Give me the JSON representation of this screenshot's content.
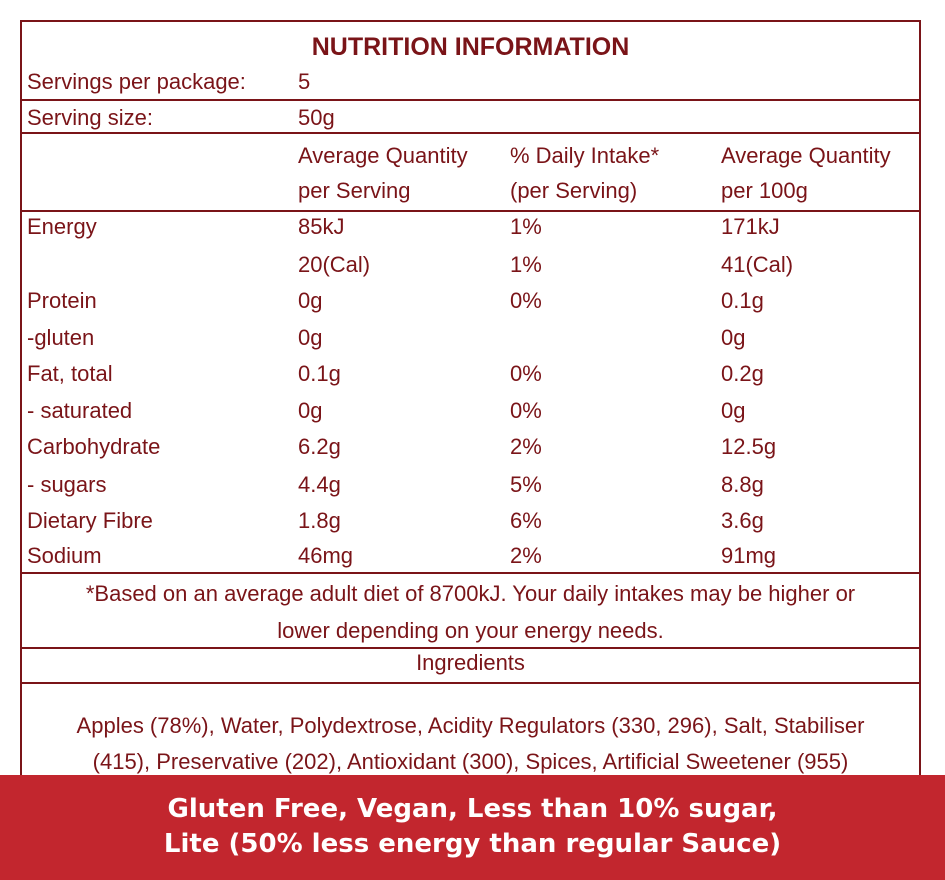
{
  "panel": {
    "title": "NUTRITION INFORMATION",
    "servings_label": "Servings per package:",
    "servings_value": "5",
    "size_label": "Serving size:",
    "size_value": "50g",
    "headers": {
      "per_serving_1": "Average Quantity",
      "per_serving_2": "per Serving",
      "daily_1": "% Daily Intake*",
      "daily_2": "(per Serving)",
      "per_100_1": "Average Quantity",
      "per_100_2": "per 100g"
    },
    "rows": [
      {
        "name": "Energy",
        "serving": "85kJ",
        "daily": "1%",
        "per100": "171kJ"
      },
      {
        "name": "",
        "serving": "20(Cal)",
        "daily": "1%",
        "per100": "41(Cal)"
      },
      {
        "name": "Protein",
        "serving": "0g",
        "daily": "0%",
        "per100": "0.1g"
      },
      {
        "name": "-gluten",
        "serving": "0g",
        "daily": "",
        "per100": "0g"
      },
      {
        "name": "Fat, total",
        "serving": "0.1g",
        "daily": "0%",
        "per100": "0.2g"
      },
      {
        "name": "- saturated",
        "serving": "0g",
        "daily": "0%",
        "per100": "0g"
      },
      {
        "name": "Carbohydrate",
        "serving": "6.2g",
        "daily": "2%",
        "per100": "12.5g"
      },
      {
        "name": "- sugars",
        "serving": "4.4g",
        "daily": "5%",
        "per100": "8.8g"
      },
      {
        "name": "Dietary Fibre",
        "serving": "1.8g",
        "daily": "6%",
        "per100": "3.6g"
      },
      {
        "name": "Sodium",
        "serving": "46mg",
        "daily": "2%",
        "per100": "91mg"
      }
    ],
    "footnote_1": "*Based on an average adult diet of 8700kJ. Your daily intakes may be higher or",
    "footnote_2": "lower depending on your energy needs.",
    "ingredients_heading": "Ingredients",
    "ingredients_1": "Apples (78%), Water, Polydextrose, Acidity Regulators (330, 296), Salt, Stabiliser",
    "ingredients_2": "(415), Preservative (202), Antioxidant (300), Spices, Artificial Sweetener (955)"
  },
  "banner": {
    "line_1": "Gluten Free, Vegan, Less than 10% sugar,",
    "line_2": "Lite (50% less energy than regular Sauce)"
  },
  "colors": {
    "text": "#7a1418",
    "banner": "#c2262e"
  }
}
